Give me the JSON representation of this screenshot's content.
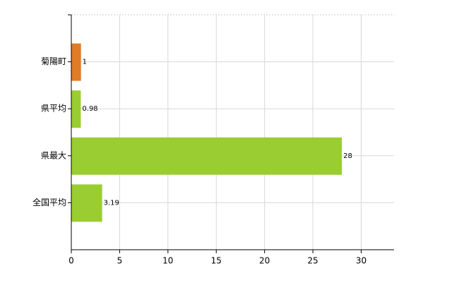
{
  "chart_data": {
    "type": "bar",
    "orientation": "horizontal",
    "categories": [
      "菊陽町",
      "県平均",
      "県最大",
      "全国平均"
    ],
    "values": [
      1,
      0.98,
      28,
      3.19
    ],
    "colors": [
      "#e07b28",
      "#9acd32",
      "#9acd32",
      "#9acd32"
    ],
    "xlim": [
      0,
      33.4
    ],
    "xticks": [
      0,
      5,
      10,
      15,
      20,
      25,
      30
    ],
    "grid": true
  }
}
